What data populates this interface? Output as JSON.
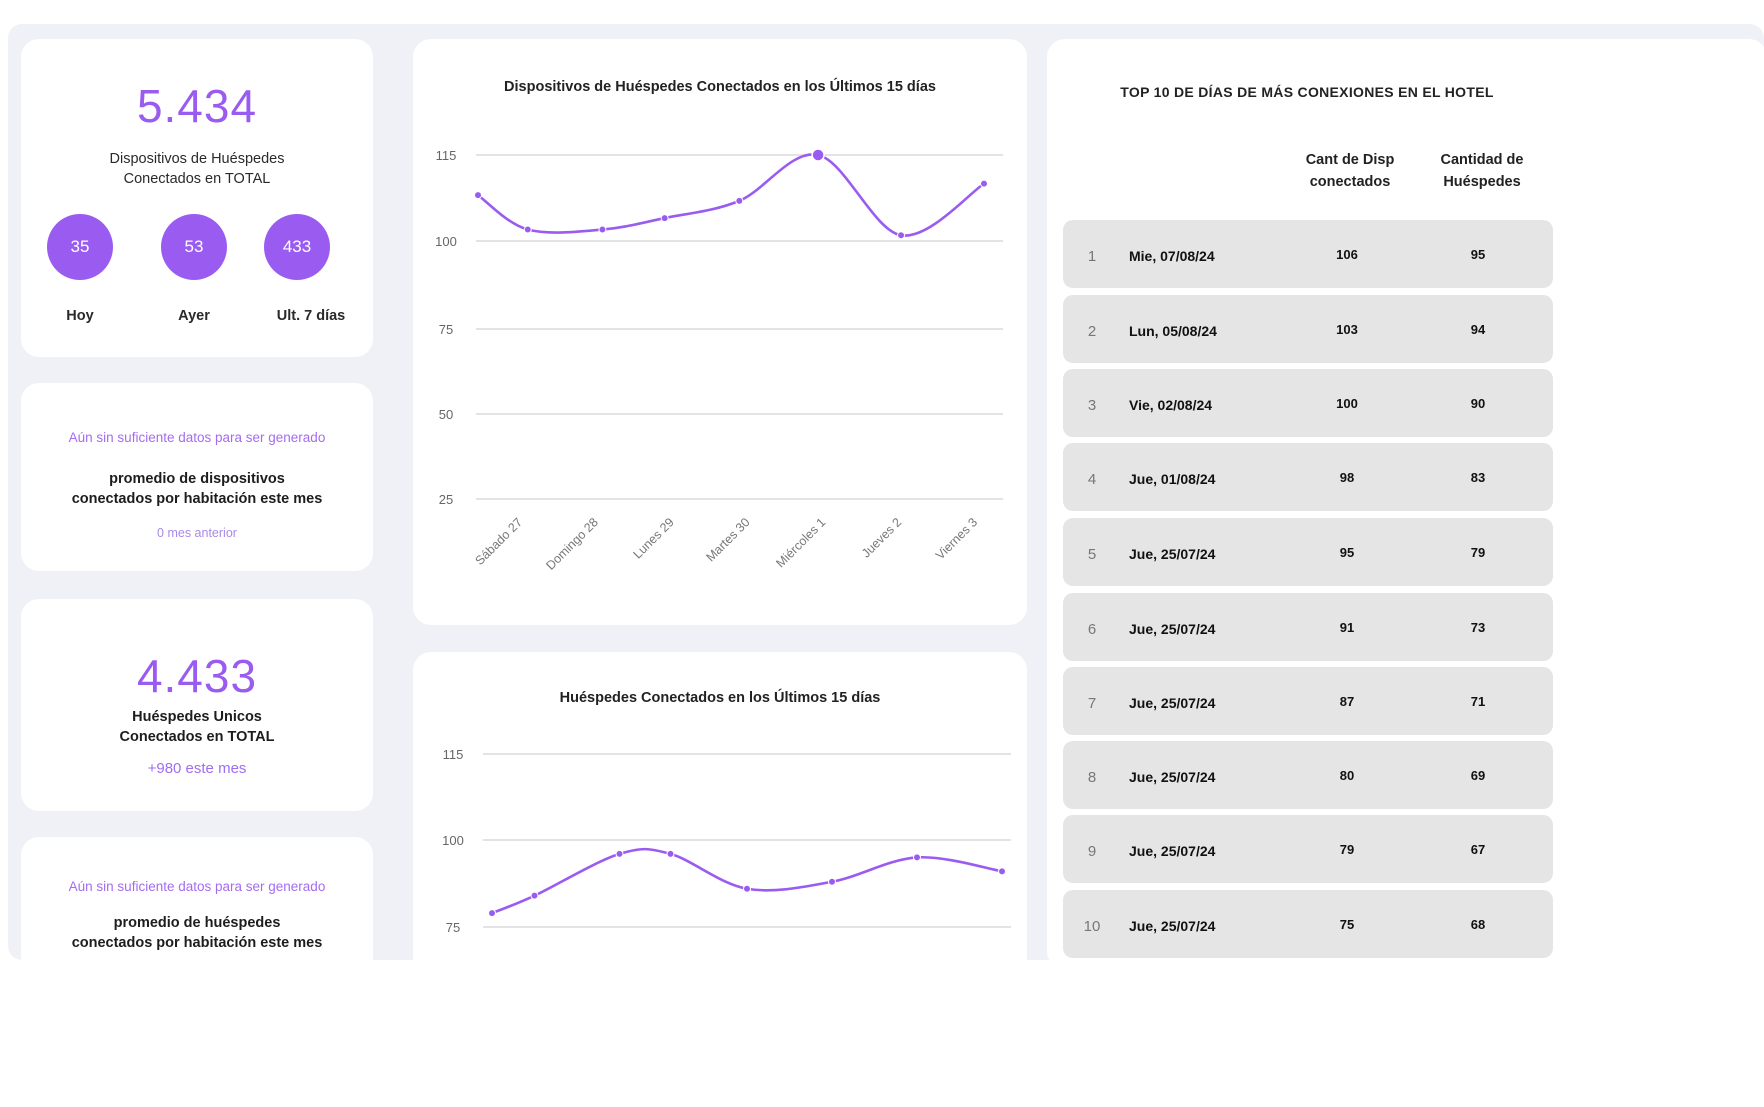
{
  "summary_total": {
    "value": "5.434",
    "label_line1": "Dispositivos de Huéspedes",
    "label_line2": "Conectados en TOTAL",
    "stats": [
      {
        "value": "35",
        "label": "Hoy"
      },
      {
        "value": "53",
        "label": "Ayer"
      },
      {
        "value": "433",
        "label": "Ult. 7 días"
      }
    ]
  },
  "avg_devices": {
    "notice": "Aún sin suficiente datos para ser generado",
    "label_line1": "promedio de dispositivos",
    "label_line2": "conectados por habitación este mes",
    "footnote": "0 mes anterior"
  },
  "unique_guests": {
    "value": "4.433",
    "label_line1": "Huéspedes Unicos",
    "label_line2": "Conectados en TOTAL",
    "delta": "+980 este mes"
  },
  "avg_guests": {
    "notice": "Aún sin suficiente datos para ser generado",
    "label_line1": "promedio de huéspedes",
    "label_line2": "conectados por habitación este mes"
  },
  "chart_devices": {
    "title": "Dispositivos de Huéspedes Conectados en los Últimos 15 días"
  },
  "chart_guests": {
    "title": "Huéspedes Conectados en los Últimos 15 días"
  },
  "colors": {
    "accent": "#9a5cf0",
    "grid": "#e3e3e6",
    "row_bg": "#e5e5e5",
    "page_bg": "#f0f1f7"
  },
  "chart_data": [
    {
      "type": "line",
      "title": "Dispositivos de Huéspedes Conectados en los Últimos 15 días",
      "y_ticks": [
        115,
        100,
        75,
        50,
        25
      ],
      "y_tick_labels": [
        "115",
        "100",
        "75",
        "50",
        "25"
      ],
      "categories": [
        "Sábado 27",
        "Domingo 28",
        "Lunes 29",
        "Martes 30",
        "Miércoles 1",
        "Jueves 2",
        "Viernes 3"
      ],
      "x": [
        0,
        0.6,
        1.5,
        2.25,
        3.15,
        4.1,
        5.1,
        6.1
      ],
      "values": [
        108,
        102,
        102,
        104,
        107,
        115,
        101,
        110
      ],
      "highlight_index": 5,
      "grid": true
    },
    {
      "type": "line",
      "title": "Huéspedes Conectados en los Últimos 15 días",
      "y_ticks": [
        115,
        100,
        75
      ],
      "y_tick_labels": [
        "115",
        "100",
        "75"
      ],
      "x": [
        0,
        0.5,
        1.5,
        2.1,
        3.0,
        4.0,
        5.0,
        6.0
      ],
      "values": [
        79,
        84,
        96,
        96,
        86,
        88,
        95,
        91
      ],
      "grid": true
    }
  ],
  "top_days": {
    "title": "TOP 10 DE DÍAS DE MÁS CONEXIONES EN EL HOTEL",
    "col1_line1": "Cant de Disp",
    "col1_line2": "conectados",
    "col2_line1": "Cantidad de",
    "col2_line2": "Huéspedes",
    "rows": [
      {
        "rank": "1",
        "date": "Mie, 07/08/24",
        "devices": "106",
        "guests": "95"
      },
      {
        "rank": "2",
        "date": "Lun, 05/08/24",
        "devices": "103",
        "guests": "94"
      },
      {
        "rank": "3",
        "date": "Vie, 02/08/24",
        "devices": "100",
        "guests": "90"
      },
      {
        "rank": "4",
        "date": "Jue, 01/08/24",
        "devices": "98",
        "guests": "83"
      },
      {
        "rank": "5",
        "date": "Jue, 25/07/24",
        "devices": "95",
        "guests": "79"
      },
      {
        "rank": "6",
        "date": "Jue, 25/07/24",
        "devices": "91",
        "guests": "73"
      },
      {
        "rank": "7",
        "date": "Jue, 25/07/24",
        "devices": "87",
        "guests": "71"
      },
      {
        "rank": "8",
        "date": "Jue, 25/07/24",
        "devices": "80",
        "guests": "69"
      },
      {
        "rank": "9",
        "date": "Jue, 25/07/24",
        "devices": "79",
        "guests": "67"
      },
      {
        "rank": "10",
        "date": "Jue, 25/07/24",
        "devices": "75",
        "guests": "68"
      }
    ]
  }
}
